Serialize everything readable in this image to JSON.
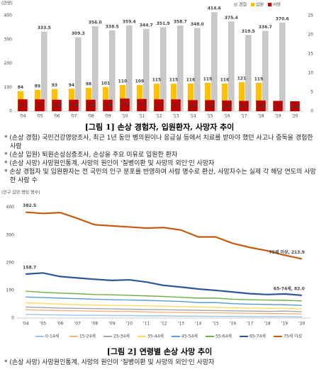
{
  "chart_data": [
    {
      "type": "bar",
      "title": "[그림 1] 손상 경험자, 입원환자, 사망자 추이",
      "ylabel": "(만명)",
      "categories": [
        "'04",
        "'05",
        "'06",
        "'07",
        "'08",
        "'09",
        "'10",
        "'11",
        "'12",
        "'13",
        "'14",
        "'15",
        "'16",
        "'17",
        "'18",
        "'19",
        "'20"
      ],
      "series": [
        {
          "name": "경험",
          "color": "#c8c8c8",
          "values": [
            null,
            333.5,
            null,
            309.3,
            356.0,
            338.5,
            359.4,
            344.7,
            351.9,
            358.7,
            348.0,
            414.6,
            375.4,
            319.5,
            336.7,
            370.6,
            null
          ],
          "value_labels": [
            null,
            "333.5",
            null,
            "309.3",
            "356.0",
            "338.5",
            "359.4",
            "344.7",
            "351.9",
            "358.7",
            "348.0",
            "414.6",
            "375.4",
            "319.5",
            "336.7",
            "370.6",
            null
          ]
        },
        {
          "name": "입원",
          "color": "#ffc000",
          "values": [
            84,
            89,
            93,
            94,
            98,
            101,
            110,
            109,
            115,
            115,
            116,
            119,
            116,
            121,
            119,
            null,
            null
          ]
        },
        {
          "name": "사망",
          "color": "#c00000",
          "axis": "y2",
          "values": [
            3.1,
            3.1,
            3.0,
            3.0,
            3.0,
            3.0,
            3.3,
            3.2,
            3.1,
            3.1,
            2.9,
            2.9,
            2.8,
            2.7,
            2.8,
            2.7,
            2.6
          ],
          "value_labels": [
            "3.1",
            "3.1",
            "3.0",
            "3.0",
            "3.0",
            "3.0",
            "3.3",
            "3.2",
            "3.1",
            "3.1",
            "2.9",
            "2.9",
            "2.8",
            "2.7",
            "2.8",
            "2.7",
            "2.6"
          ]
        }
      ],
      "ylim": [
        0,
        430
      ],
      "yticks": [
        0,
        100,
        200,
        300,
        400
      ],
      "y2lim": [
        0,
        26.875
      ],
      "y2ticks": [
        0,
        5,
        10,
        15,
        20,
        25
      ],
      "legend": "top-right",
      "grid": false,
      "notes": [
        "* (손상 경험) 국민건강영양조사, 최근 1년 동안 병의원이나 응급실 등에서 치료를 받아야 했던 사고나 중독을 경험한 사람",
        "* (손상 입원) 퇴원손상심층조사, 손상을 주요 이유로 입원한 환자",
        "* (손상 사망) 사망원인통계, 사망의 원인이 '질병이환 및 사망의 외인'인 사망자",
        "* 손상 경험자 및 입원환자는 전 국민의 인구 분포를 반영하여 사람 명수로 환산, 사망자수는 실제 각 해당 연도의 사망한 사람 수"
      ]
    },
    {
      "type": "line",
      "title": "[그림 2] 연령별 손상 사망 추이",
      "ylabel": "(인구 십만 명당 명수)",
      "categories": [
        "'04",
        "'05",
        "'06",
        "'07",
        "'08",
        "'09",
        "'10",
        "'11",
        "'12",
        "'13",
        "'14",
        "'15",
        "'16",
        "'17",
        "'18",
        "'19",
        "'20"
      ],
      "series": [
        {
          "name": "0-14세",
          "color": "#9dc3e6",
          "values": [
            13,
            12,
            11,
            10,
            10,
            9,
            9,
            8,
            8,
            7,
            7,
            6,
            6,
            5,
            5,
            5,
            4
          ]
        },
        {
          "name": "15-24세",
          "color": "#f4b183",
          "values": [
            30,
            28,
            27,
            26,
            25,
            24,
            24,
            22,
            21,
            20,
            19,
            19,
            18,
            17,
            16,
            16,
            15
          ]
        },
        {
          "name": "25-34세",
          "color": "#a5a5a5",
          "values": [
            40,
            38,
            36,
            35,
            34,
            33,
            32,
            31,
            30,
            29,
            28,
            27,
            26,
            25,
            24,
            25,
            23
          ]
        },
        {
          "name": "35-44세",
          "color": "#ffd966",
          "values": [
            55,
            53,
            50,
            48,
            47,
            46,
            45,
            44,
            43,
            41,
            40,
            39,
            37,
            36,
            35,
            35,
            33
          ]
        },
        {
          "name": "45-54세",
          "color": "#5b9bd5",
          "values": [
            76,
            74,
            72,
            70,
            68,
            66,
            65,
            64,
            62,
            60,
            56,
            56,
            52,
            50,
            49,
            48,
            46
          ]
        },
        {
          "name": "55-64세",
          "color": "#70ad47",
          "values": [
            97,
            93,
            90,
            88,
            85,
            84,
            82,
            80,
            78,
            75,
            72,
            72,
            68,
            66,
            65,
            64,
            62
          ]
        },
        {
          "name": "65-74세",
          "color": "#2e5597",
          "values": [
            158.7,
            163,
            150,
            145,
            140,
            136,
            138,
            130,
            118,
            112,
            105,
            100,
            94,
            88,
            85,
            87,
            82.0
          ],
          "value_labels": [
            "158.7",
            null,
            null,
            null,
            null,
            null,
            null,
            null,
            null,
            null,
            null,
            null,
            null,
            null,
            null,
            null,
            "65-74세, 82.0"
          ]
        },
        {
          "name": "75세 이상",
          "color": "#c55a11",
          "values": [
            382.5,
            378,
            381,
            360,
            337,
            333,
            329,
            325,
            327,
            318,
            293,
            293,
            270,
            255,
            243,
            227,
            213.9
          ],
          "value_labels": [
            "382.5",
            null,
            null,
            null,
            null,
            null,
            null,
            null,
            null,
            null,
            null,
            null,
            null,
            null,
            null,
            null,
            "75세 이상, 213.9"
          ]
        }
      ],
      "ylim": [
        0,
        430
      ],
      "yticks": [
        0,
        100,
        200,
        300,
        400
      ],
      "legend": "bottom",
      "grid": false,
      "notes": [
        "* (손상 사망) 사망원인통계, 사망의 원인이 '질병이환 및 사망의 외인'인 사망자"
      ]
    }
  ]
}
